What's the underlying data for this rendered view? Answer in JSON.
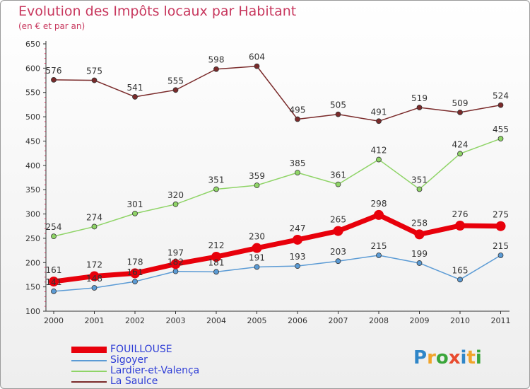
{
  "header": {
    "title": "Evolution des Impôts locaux par Habitant",
    "subtitle": "(en € et par an)"
  },
  "logo": {
    "text": "Proxiti",
    "colors": [
      "#2f86c8",
      "#f1a42a",
      "#3aa53a",
      "#e84b2f",
      "#2f86c8",
      "#f1a42a",
      "#3aa53a"
    ]
  },
  "chart_data": {
    "type": "line",
    "title": "Evolution des Impôts locaux par Habitant",
    "subtitle": "(en € et par an)",
    "xlabel": "",
    "ylabel": "",
    "categories": [
      "2000",
      "2001",
      "2002",
      "2003",
      "2004",
      "2005",
      "2006",
      "2007",
      "2008",
      "2009",
      "2010",
      "2011"
    ],
    "ylim": [
      100,
      650
    ],
    "yticks": [
      100,
      150,
      200,
      250,
      300,
      350,
      400,
      450,
      500,
      550,
      600,
      650
    ],
    "grid": false,
    "legend": "bottom-left",
    "series": [
      {
        "name": "FOUILLOUSE",
        "color": "#e8000b",
        "values": [
          161,
          172,
          178,
          197,
          212,
          230,
          247,
          265,
          298,
          258,
          276,
          275
        ]
      },
      {
        "name": "Sigoyer",
        "color": "#5b9bd5",
        "values": [
          141,
          148,
          161,
          182,
          181,
          191,
          193,
          203,
          215,
          199,
          165,
          215
        ]
      },
      {
        "name": "Lardier-et-Valença",
        "color": "#8fd467",
        "values": [
          254,
          274,
          301,
          320,
          351,
          359,
          385,
          361,
          412,
          351,
          424,
          455
        ]
      },
      {
        "name": "La Saulce",
        "color": "#7a2a2a",
        "values": [
          576,
          575,
          541,
          555,
          598,
          604,
          495,
          505,
          491,
          519,
          509,
          524
        ]
      }
    ]
  }
}
